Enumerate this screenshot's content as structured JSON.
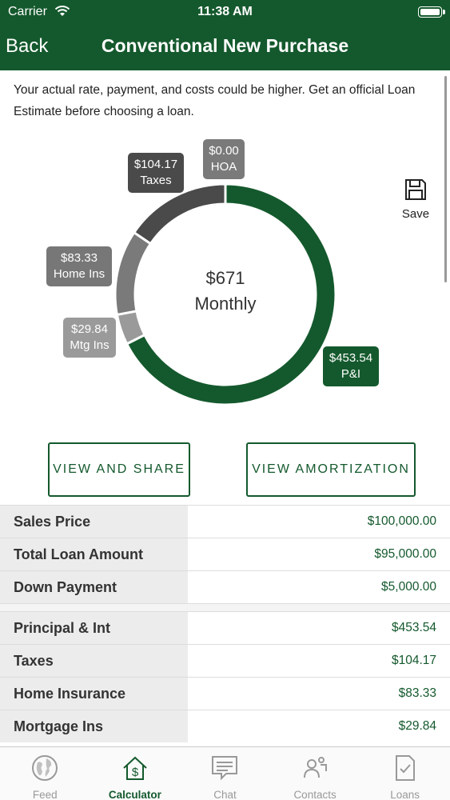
{
  "status_bar": {
    "carrier": "Carrier",
    "time": "11:38 AM"
  },
  "nav": {
    "back_label": "Back",
    "title": "Conventional New Purchase"
  },
  "disclaimer": "Your actual rate, payment, and costs could be higher. Get an official Loan Estimate before choosing a loan.",
  "chart_data": {
    "type": "pie",
    "donut": true,
    "center_amount": "$671",
    "center_label": "Monthly",
    "slices": [
      {
        "label": "P&I",
        "value": 453.54,
        "display": "$453.54",
        "color": "#14592d"
      },
      {
        "label": "Mtg Ins",
        "value": 29.84,
        "display": "$29.84",
        "color": "#9a9a9a"
      },
      {
        "label": "Home Ins",
        "value": 83.33,
        "display": "$83.33",
        "color": "#7a7a7a"
      },
      {
        "label": "Taxes",
        "value": 104.17,
        "display": "$104.17",
        "color": "#4a4a4a"
      },
      {
        "label": "HOA",
        "value": 0.0,
        "display": "$0.00",
        "color": "#7a7a7a"
      }
    ]
  },
  "save": {
    "label": "Save",
    "icon": "floppy-disk-icon"
  },
  "buttons": {
    "view_share": "VIEW AND SHARE",
    "view_amortization": "VIEW AMORTIZATION"
  },
  "summary_rows": [
    {
      "label": "Sales Price",
      "value": "$100,000.00"
    },
    {
      "label": "Total Loan Amount",
      "value": "$95,000.00"
    },
    {
      "label": "Down Payment",
      "value": "$5,000.00"
    }
  ],
  "payment_rows": [
    {
      "label": "Principal & Int",
      "value": "$453.54"
    },
    {
      "label": "Taxes",
      "value": "$104.17"
    },
    {
      "label": "Home Insurance",
      "value": "$83.33"
    },
    {
      "label": "Mortgage Ins",
      "value": "$29.84"
    }
  ],
  "tabs": [
    {
      "label": "Feed",
      "icon": "globe-icon"
    },
    {
      "label": "Calculator",
      "icon": "house-dollar-icon",
      "active": true
    },
    {
      "label": "Chat",
      "icon": "chat-bubble-icon"
    },
    {
      "label": "Contacts",
      "icon": "contacts-icon"
    },
    {
      "label": "Loans",
      "icon": "document-check-icon"
    }
  ],
  "colors": {
    "brand_green": "#14592d",
    "label_bg": "#ececec"
  }
}
